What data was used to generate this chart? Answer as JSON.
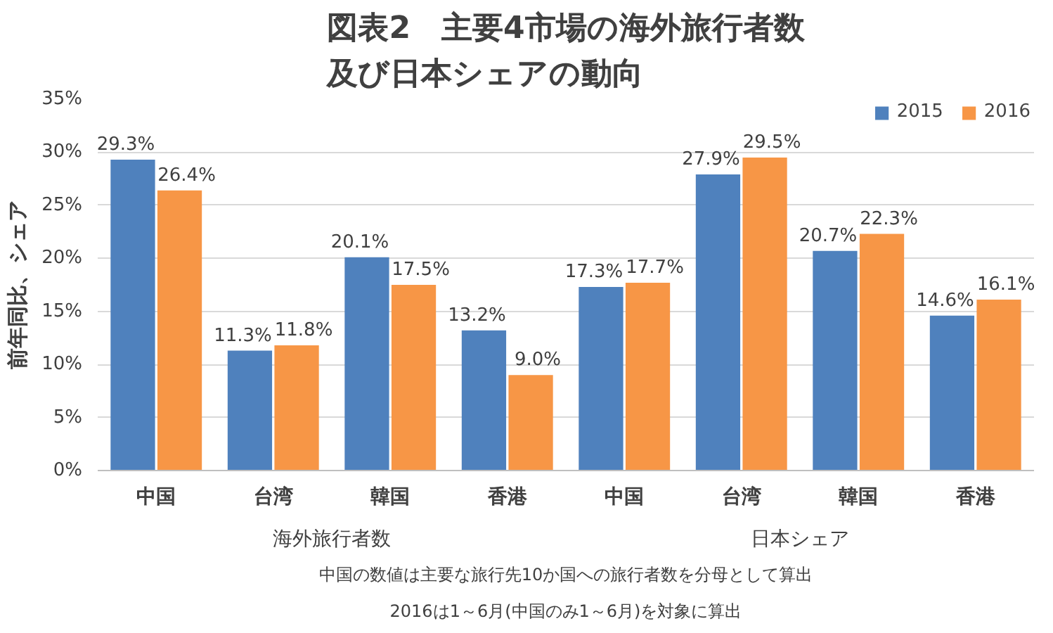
{
  "chart_data": {
    "type": "bar",
    "title": "図表2　主要4市場の海外旅行者数及び日本シェアの動向",
    "ylabel": "前年同比、シェア",
    "categories": [
      "中国",
      "台湾",
      "韓国",
      "香港",
      "中国",
      "台湾",
      "韓国",
      "香港"
    ],
    "series": [
      {
        "name": "2015",
        "color": "#4f81bd",
        "values": [
          29.3,
          11.3,
          20.1,
          13.2,
          17.3,
          27.9,
          20.7,
          14.6
        ],
        "value_labels": [
          "29.3%",
          "11.3%",
          "20.1%",
          "13.2%",
          "17.3%",
          "27.9%",
          "20.7%",
          "14.6%"
        ]
      },
      {
        "name": "2016",
        "color": "#f79646",
        "values": [
          26.4,
          11.8,
          17.5,
          9.0,
          17.7,
          29.5,
          22.3,
          16.1
        ],
        "value_labels": [
          "26.4%",
          "11.8%",
          "17.5%",
          "9.0%",
          "17.7%",
          "29.5%",
          "22.3%",
          "16.1%"
        ]
      }
    ],
    "ylim": [
      0,
      35
    ],
    "yticks": [
      {
        "value": 0,
        "label": "0%"
      },
      {
        "value": 5,
        "label": "5%"
      },
      {
        "value": 10,
        "label": "10%"
      },
      {
        "value": 15,
        "label": "15%"
      },
      {
        "value": 20,
        "label": "20%"
      },
      {
        "value": 25,
        "label": "25%"
      },
      {
        "value": 30,
        "label": "30%"
      },
      {
        "value": 35,
        "label": "35%"
      }
    ],
    "grid": "y",
    "legend": "top right",
    "annotations": [
      "海外旅行者数",
      "日本シェア",
      "中国の数値は主要な旅行先10か国への旅行者数を分母として算出",
      "2016は1～6月(中国のみ1～6月)を対象に算出"
    ]
  }
}
